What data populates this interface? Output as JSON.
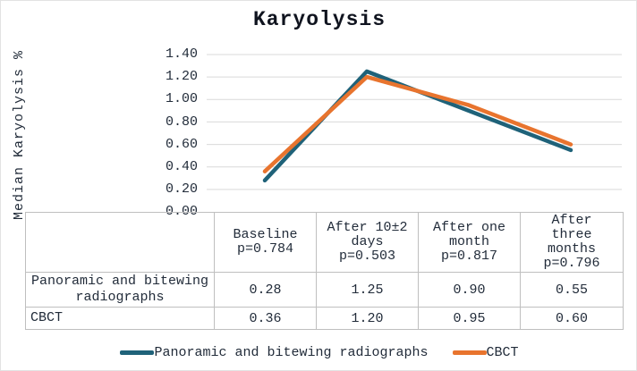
{
  "title": "Karyolysis",
  "colors": {
    "series1": "#1f6279",
    "series2": "#e8742e",
    "grid": "#d9d9d9",
    "table_border": "#bfbfbf",
    "text": "#222c3a"
  },
  "chart_data": {
    "type": "line",
    "title": "Karyolysis",
    "ylabel": "Median Karyolysis %",
    "xlabel": "",
    "ylim": [
      0,
      1.4
    ],
    "ytick_step": 0.2,
    "yticks": [
      "1.40",
      "1.20",
      "1.00",
      "0.80",
      "0.60",
      "0.40",
      "0.20",
      "0.00"
    ],
    "grid": true,
    "legend_position": "bottom",
    "categories": [
      "Baseline p=0.784",
      "After 10±2 days p=0.503",
      "After one month p=0.817",
      "After three months p=0.796"
    ],
    "series": [
      {
        "name": "Panoramic and bitewing radiographs",
        "values": [
          0.28,
          1.25,
          0.9,
          0.55
        ],
        "color": "#1f6279"
      },
      {
        "name": "CBCT",
        "values": [
          0.36,
          1.2,
          0.95,
          0.6
        ],
        "color": "#e8742e"
      }
    ]
  },
  "table": {
    "col_headers": [
      "Baseline\np=0.784",
      "After 10±2\ndays\np=0.503",
      "After one\nmonth\np=0.817",
      "After\nthree\nmonths\np=0.796"
    ],
    "rows": [
      {
        "label": "Panoramic and bitewing\nradiographs",
        "values": [
          "0.28",
          "1.25",
          "0.90",
          "0.55"
        ]
      },
      {
        "label": "CBCT",
        "values": [
          "0.36",
          "1.20",
          "0.95",
          "0.60"
        ]
      }
    ]
  },
  "legend": {
    "items": [
      "Panoramic and bitewing radiographs",
      "CBCT"
    ]
  }
}
